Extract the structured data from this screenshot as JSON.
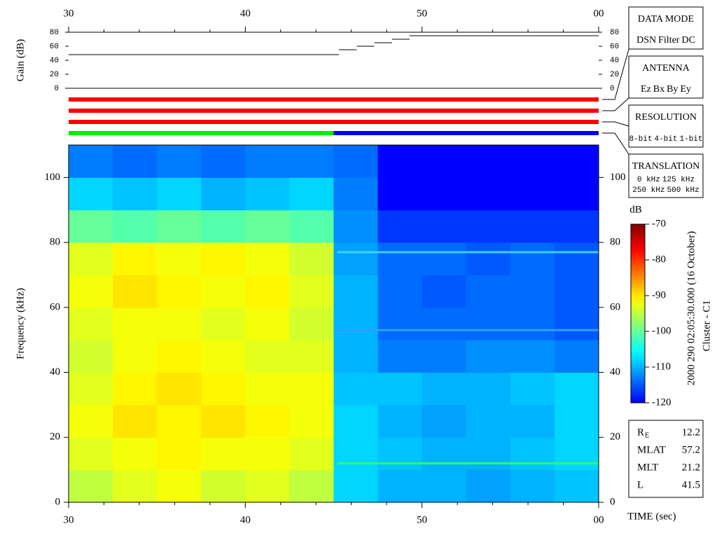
{
  "chart_data": [
    {
      "type": "step",
      "ylabel": "Gain (dB)",
      "color": "#000000",
      "xlim": [
        30,
        60
      ],
      "xticks": [
        30,
        40,
        50,
        {
          "value": 60,
          "label": "00"
        }
      ],
      "xticks_minor": [
        32,
        34,
        36,
        38,
        42,
        44,
        46,
        48,
        52,
        54,
        56,
        58
      ],
      "ylim": [
        0,
        80
      ],
      "yticks": [
        0,
        20,
        40,
        60,
        80
      ],
      "segments": [
        {
          "x": [
            30,
            45.3
          ],
          "value": 48
        },
        {
          "x": [
            45.3,
            46.3
          ],
          "value": 55
        },
        {
          "x": [
            46.3,
            47.3
          ],
          "value": 60
        },
        {
          "x": [
            47.3,
            48.3
          ],
          "value": 65
        },
        {
          "x": [
            48.3,
            49.3
          ],
          "value": 70
        },
        {
          "x": [
            49.3,
            60
          ],
          "value": 75
        }
      ]
    },
    {
      "type": "status",
      "xlim": [
        30,
        60
      ],
      "bars": [
        {
          "segments": [
            {
              "x": [
                30,
                60
              ],
              "color": "#ff0000"
            }
          ]
        },
        {
          "segments": [
            {
              "x": [
                30,
                60
              ],
              "color": "#ff0000"
            }
          ]
        },
        {
          "segments": [
            {
              "x": [
                30,
                60
              ],
              "color": "#ff0000"
            }
          ]
        },
        {
          "segments": [
            {
              "x": [
                30,
                45
              ],
              "color": "#00ee00"
            },
            {
              "x": [
                45,
                60
              ],
              "color": "#0000ee"
            }
          ]
        }
      ]
    },
    {
      "type": "heatmap",
      "ylabel": "Frequency (kHz)",
      "xlabel": "TIME (sec)",
      "xlim": [
        30,
        60
      ],
      "xticks": [
        30,
        40,
        50,
        {
          "value": 60,
          "label": "00"
        }
      ],
      "xticks_minor": [
        32,
        34,
        36,
        38,
        42,
        44,
        46,
        48,
        52,
        54,
        56,
        58
      ],
      "ylim": [
        0,
        110
      ],
      "yticks": [
        0,
        20,
        40,
        60,
        80,
        100
      ],
      "x_edges": [
        30,
        32.5,
        35,
        37.5,
        40,
        42.5,
        45,
        47.5,
        50,
        52.5,
        55,
        57.5,
        60
      ],
      "y_edges": [
        0,
        10,
        20,
        30,
        40,
        50,
        60,
        70,
        80,
        90,
        100,
        110
      ],
      "z": [
        [
          -95,
          -93,
          -92,
          -94,
          -93,
          -95,
          -108,
          -110,
          -110,
          -111,
          -110,
          -109
        ],
        [
          -93,
          -92,
          -91,
          -92,
          -92,
          -93,
          -108,
          -109,
          -110,
          -110,
          -109,
          -108
        ],
        [
          -92,
          -90,
          -91,
          -90,
          -91,
          -92,
          -108,
          -110,
          -111,
          -110,
          -110,
          -108
        ],
        [
          -93,
          -91,
          -90,
          -91,
          -92,
          -92,
          -109,
          -109,
          -110,
          -110,
          -109,
          -108
        ],
        [
          -94,
          -92,
          -91,
          -92,
          -93,
          -93,
          -110,
          -113,
          -113,
          -112,
          -112,
          -113
        ],
        [
          -93,
          -92,
          -92,
          -93,
          -92,
          -94,
          -110,
          -114,
          -114,
          -114,
          -114,
          -115
        ],
        [
          -92,
          -90,
          -91,
          -92,
          -91,
          -93,
          -110,
          -114,
          -115,
          -114,
          -114,
          -115
        ],
        [
          -93,
          -91,
          -92,
          -91,
          -92,
          -94,
          -111,
          -114,
          -114,
          -115,
          -114,
          -115
        ],
        [
          -100,
          -101,
          -100,
          -101,
          -100,
          -101,
          -112,
          -117,
          -117,
          -117,
          -117,
          -117
        ],
        [
          -108,
          -109,
          -108,
          -110,
          -109,
          -108,
          -113,
          -120,
          -120,
          -120,
          -120,
          -120
        ],
        [
          -113,
          -114,
          -113,
          -114,
          -113,
          -113,
          -114,
          -120,
          -120,
          -120,
          -120,
          -120
        ]
      ],
      "tones": [
        {
          "y": 77,
          "x": [
            45.2,
            60
          ],
          "color": "#40d0ff"
        },
        {
          "y": 53,
          "x": [
            45.2,
            60
          ],
          "color": "#30a0ff"
        },
        {
          "y": 12,
          "x": [
            45.2,
            60
          ],
          "color": "#30ff60"
        }
      ],
      "colorbar": {
        "label": "dB",
        "lim": [
          -120,
          -70
        ],
        "ticks": [
          -120,
          -110,
          -100,
          -90,
          -80,
          -70
        ]
      }
    }
  ],
  "legends": [
    {
      "title": "DATA MODE",
      "rows": [
        [
          {
            "label": "DSN",
            "color": "#ff0000"
          },
          {
            "label": "Filter",
            "color": "#00cc00"
          },
          {
            "label": "DC",
            "color": "#0000ff"
          }
        ]
      ]
    },
    {
      "title": "ANTENNA",
      "rows": [
        [
          {
            "label": "Ez",
            "color": "#ff0000"
          },
          {
            "label": "Bx",
            "color": "#00cc00"
          },
          {
            "label": "By",
            "color": "#0000ff"
          },
          {
            "label": "Ey",
            "color": "#000000"
          }
        ]
      ]
    },
    {
      "title": "RESOLUTION",
      "rows": [
        [
          {
            "label": "8-bit",
            "color": "#ff0000"
          },
          {
            "label": "4-bit",
            "color": "#00cc00"
          },
          {
            "label": "1-bit",
            "color": "#0000ff"
          }
        ]
      ]
    },
    {
      "title": "TRANSLATION",
      "rows": [
        [
          {
            "label": "0 kHz",
            "color": "#ff0000"
          },
          {
            "label": "125 kHz",
            "color": "#00cc00"
          }
        ],
        [
          {
            "label": "250 kHz",
            "color": "#0000ff"
          },
          {
            "label": "500 kHz",
            "color": "#000000"
          }
        ]
      ]
    }
  ],
  "side_text": [
    "2000 290 02:05:30.000 (16 October)",
    "Cluster - C1"
  ],
  "info": [
    {
      "label": "R",
      "sub": "E",
      "value": 12.2
    },
    {
      "label": "MLAT",
      "value": 57.2
    },
    {
      "label": "MLT",
      "value": 21.2
    },
    {
      "label": "L",
      "value": 41.5
    }
  ]
}
